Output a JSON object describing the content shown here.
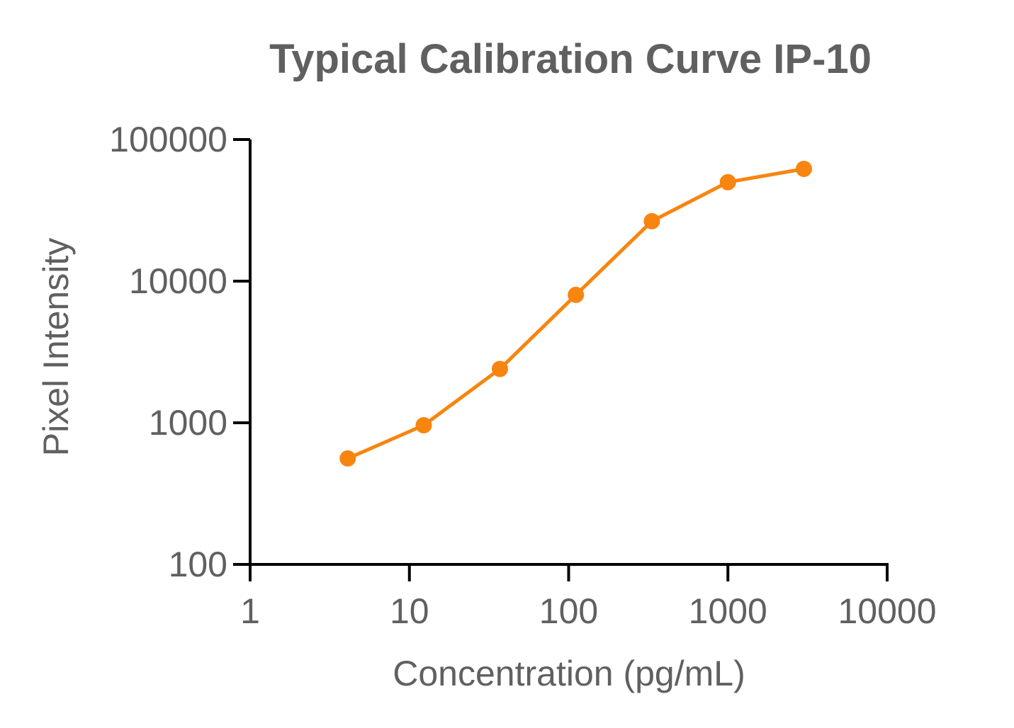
{
  "chart_data": {
    "type": "line",
    "title": "Typical Calibration Curve IP-10",
    "xlabel": "Concentration (pg/mL)",
    "ylabel": "Pixel Intensity",
    "x_scale": "log",
    "y_scale": "log",
    "xlim": [
      1,
      10000
    ],
    "ylim": [
      100,
      100000
    ],
    "x_ticks": [
      "1",
      "10",
      "100",
      "1000",
      "10000"
    ],
    "y_ticks": [
      "100",
      "1000",
      "10000",
      "100000"
    ],
    "grid": false,
    "legend": "none",
    "series": [
      {
        "color": "#f7850f",
        "marker": "circle",
        "points": [
          {
            "x": 4.1,
            "y": 560
          },
          {
            "x": 12.3,
            "y": 960
          },
          {
            "x": 37,
            "y": 2400
          },
          {
            "x": 111,
            "y": 8000
          },
          {
            "x": 333,
            "y": 26500
          },
          {
            "x": 1000,
            "y": 50000
          },
          {
            "x": 3000,
            "y": 62000
          }
        ]
      }
    ],
    "colors": {
      "text": "#606060",
      "axis": "#000000"
    }
  }
}
